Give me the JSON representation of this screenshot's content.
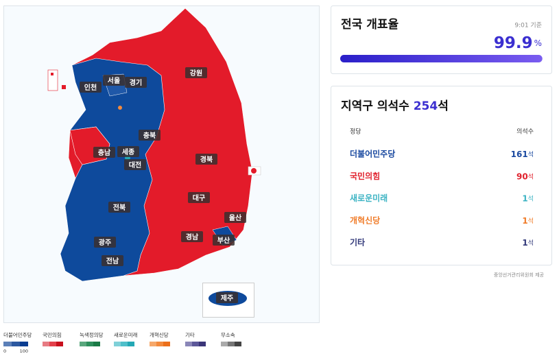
{
  "map": {
    "regions": [
      "인천",
      "서울",
      "경기",
      "강원",
      "충북",
      "충남",
      "세종",
      "대전",
      "경북",
      "대구",
      "전북",
      "울산",
      "경남",
      "부산",
      "광주",
      "전남",
      "제주"
    ]
  },
  "legend": {
    "items": [
      {
        "label": "더불어민주당",
        "colors": [
          "#5b7fb8",
          "#2c58a0",
          "#0b3d91"
        ]
      },
      {
        "label": "국민의힘",
        "colors": [
          "#e77b83",
          "#e3404b",
          "#c8101d"
        ]
      },
      {
        "label": "녹색정의당",
        "colors": [
          "#5aa77d",
          "#2e8f5c",
          "#1a7a46"
        ]
      },
      {
        "label": "새로운미래",
        "colors": [
          "#7fd0d8",
          "#4fbfca",
          "#24a8b5"
        ]
      },
      {
        "label": "개혁신당",
        "colors": [
          "#f6a86a",
          "#f38a3c",
          "#ec6f1a"
        ]
      },
      {
        "label": "기타",
        "colors": [
          "#8a86b8",
          "#5c5799",
          "#3a3578"
        ]
      },
      {
        "label": "무소속",
        "colors": [
          "#aaaaaa",
          "#777777",
          "#444444"
        ]
      }
    ],
    "scale": [
      "0",
      "100"
    ]
  },
  "counting": {
    "title": "전국 개표율",
    "time": "9:01 기준",
    "rate": 99.9,
    "unit": "%",
    "scale": [
      0,
      100
    ]
  },
  "seats": {
    "title": "지역구 의석수 ",
    "total": 254,
    "unit": "석",
    "header": [
      "정당",
      "의석수"
    ],
    "rows": [
      {
        "party": "더불어민주당",
        "seats": 161,
        "unit": "석",
        "color": "#1b4aa0"
      },
      {
        "party": "국민의힘",
        "seats": 90,
        "unit": "석",
        "color": "#e0202c"
      },
      {
        "party": "새로운미래",
        "seats": 1,
        "unit": "석",
        "color": "#3bb3c3"
      },
      {
        "party": "개혁신당",
        "seats": 1,
        "unit": "석",
        "color": "#f07d2b"
      },
      {
        "party": "기타",
        "seats": 1,
        "unit": "석",
        "color": "#333a7a"
      }
    ]
  },
  "source": "중앙선거관리위원회 제공"
}
